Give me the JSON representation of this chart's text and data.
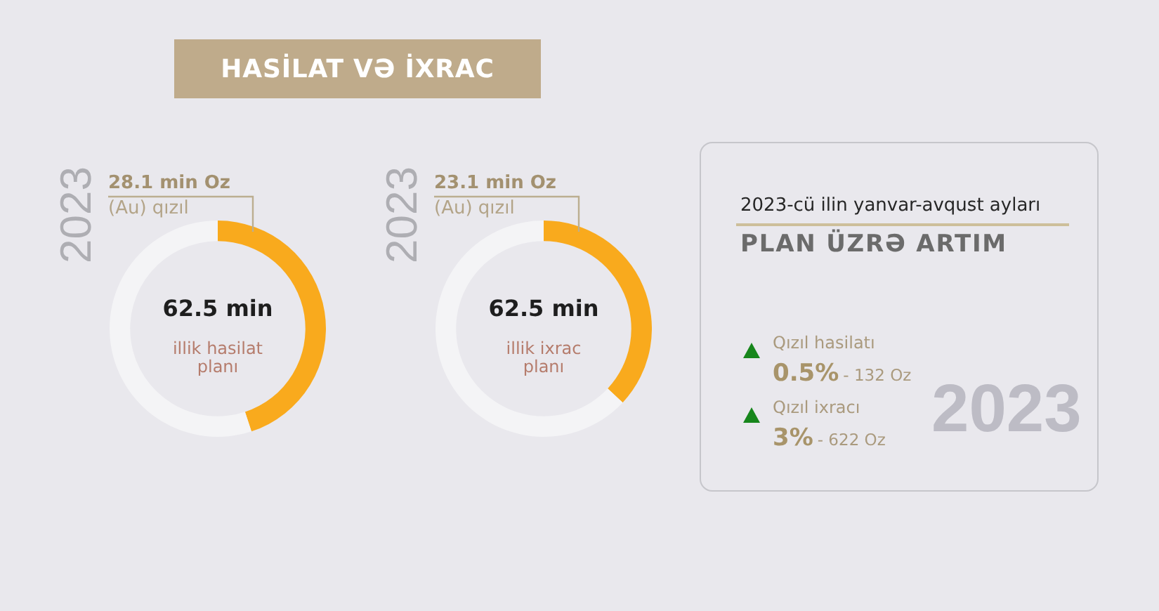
{
  "chart_data": [
    {
      "type": "donut",
      "title": "HASİLAT VƏ İXRAC",
      "categories": [
        "(Au) qızıl",
        null
      ],
      "values": [
        28.1,
        34.4
      ],
      "colors": [
        "#f9aa1d",
        "#f4f4f6"
      ],
      "value_labels": [
        "28.1 min Oz",
        null
      ],
      "annotations": [
        "2023",
        "62.5 min",
        "illik hasilat planı"
      ]
    },
    {
      "type": "donut",
      "categories": [
        "(Au) qızıl",
        null
      ],
      "values": [
        23.1,
        39.4
      ],
      "colors": [
        "#f9aa1d",
        "#f4f4f6"
      ],
      "value_labels": [
        "23.1 min Oz",
        null
      ],
      "annotations": [
        "2023",
        "62.5 min",
        "illik ixrac planı"
      ]
    },
    {
      "type": "other",
      "title": "PLAN ÜZRƏ ARTIM",
      "subtitle": "2023-cü ilin yanvar-avqust ayları",
      "annotations": [
        "2023",
        "Qızıl hasilatı",
        "0.5%",
        "- 132 Oz",
        "Qızıl ixracı",
        "3%",
        "- 622 Oz"
      ]
    }
  ]
}
